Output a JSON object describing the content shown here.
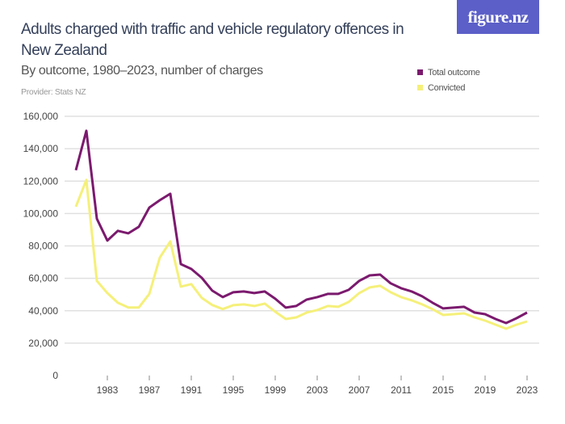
{
  "header": {
    "title": "Adults charged with traffic and vehicle regulatory offences in New Zealand",
    "subtitle": "By outcome, 1980–2023, number of charges",
    "provider": "Provider: Stats NZ",
    "logo": "figure.nz"
  },
  "colors": {
    "total": "#7b1a6e",
    "convicted": "#f5f07a",
    "grid": "#e0e0e0",
    "logo_bg": "#5b5fc7"
  },
  "chart_data": {
    "type": "line",
    "title": "Adults charged with traffic and vehicle regulatory offences in New Zealand",
    "subtitle": "By outcome, 1980–2023, number of charges",
    "xlim": [
      1980,
      2023
    ],
    "ylim": [
      0,
      160000
    ],
    "x_ticks": [
      1983,
      1987,
      1991,
      1995,
      1999,
      2003,
      2007,
      2011,
      2015,
      2019,
      2023
    ],
    "y_ticks": [
      0,
      20000,
      40000,
      60000,
      80000,
      100000,
      120000,
      140000,
      160000
    ],
    "y_tick_labels": [
      "0",
      "20,000",
      "40,000",
      "60,000",
      "80,000",
      "100,000",
      "120,000",
      "140,000",
      "160,000"
    ],
    "grid": true,
    "legend_placement": "top-right",
    "x": [
      1980,
      1981,
      1982,
      1983,
      1984,
      1985,
      1986,
      1987,
      1988,
      1989,
      1990,
      1991,
      1992,
      1993,
      1994,
      1995,
      1996,
      1997,
      1998,
      1999,
      2000,
      2001,
      2002,
      2003,
      2004,
      2005,
      2006,
      2007,
      2008,
      2009,
      2010,
      2011,
      2012,
      2013,
      2014,
      2015,
      2016,
      2017,
      2018,
      2019,
      2020,
      2021,
      2022,
      2023
    ],
    "series": [
      {
        "name": "Total outcome",
        "color": "#7b1a6e",
        "values": [
          126700,
          151100,
          96800,
          83300,
          89300,
          87800,
          91800,
          103700,
          108200,
          112200,
          68800,
          65800,
          60300,
          52400,
          48400,
          51400,
          51900,
          50900,
          51900,
          47400,
          41900,
          42900,
          46900,
          48400,
          50400,
          50400,
          52900,
          58400,
          61800,
          62300,
          56900,
          53900,
          51900,
          48900,
          44900,
          41400,
          41900,
          42400,
          38900,
          37900,
          34900,
          32400,
          35400,
          38900
        ]
      },
      {
        "name": "Convicted",
        "color": "#f5f07a",
        "values": [
          104200,
          120700,
          58400,
          50900,
          44900,
          42000,
          42000,
          50400,
          72800,
          82800,
          54900,
          56400,
          47900,
          43500,
          41000,
          43400,
          43900,
          42900,
          44400,
          39400,
          34900,
          35900,
          38900,
          40400,
          42900,
          42400,
          45400,
          50900,
          54400,
          55400,
          51400,
          48400,
          46400,
          43900,
          40900,
          37400,
          37900,
          38400,
          35900,
          33900,
          31400,
          28900,
          31400,
          33400
        ]
      }
    ]
  }
}
